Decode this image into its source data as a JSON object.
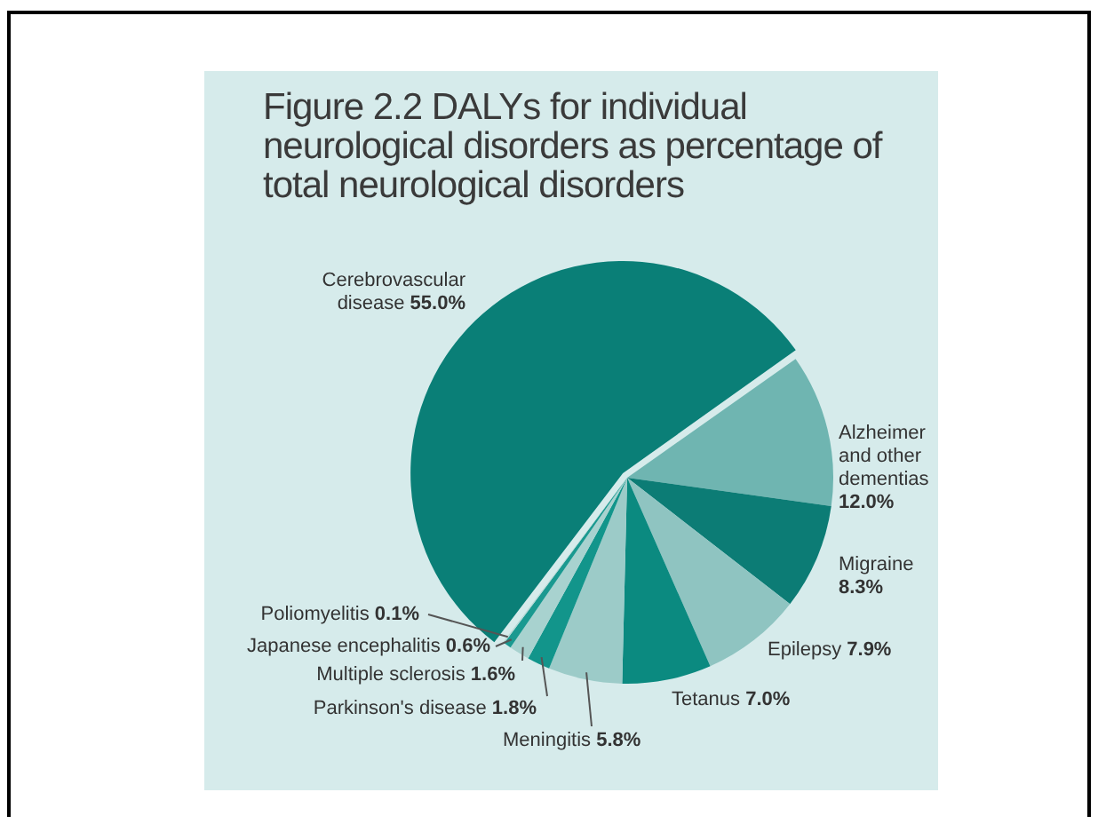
{
  "chart_data": {
    "type": "pie",
    "title": "Figure 2.2 DALYs for individual neurological disorders  as percentage of total neurological disorders",
    "categories": [
      "Cerebrovascular disease",
      "Alzheimer and other dementias",
      "Migraine",
      "Epilepsy",
      "Tetanus",
      "Meningitis",
      "Parkinson's disease",
      "Multiple sclerosis",
      "Japanese encephalitis",
      "Poliomyelitis"
    ],
    "values": [
      55.0,
      12.0,
      8.3,
      7.9,
      7.0,
      5.8,
      1.8,
      1.6,
      0.6,
      0.1
    ],
    "value_labels": [
      "55.0%",
      "12.0%",
      "8.3%",
      "7.9%",
      "7.0%",
      "5.8%",
      "1.8%",
      "1.6%",
      "0.6%",
      "0.1%"
    ],
    "colors": [
      "#0a7f77",
      "#6fb5b1",
      "#0c7c75",
      "#8fc4c1",
      "#0b8a80",
      "#9ccbc8",
      "#12958b",
      "#a8d2cf",
      "#1a9990",
      "#b5d9d6"
    ],
    "legend": false
  }
}
